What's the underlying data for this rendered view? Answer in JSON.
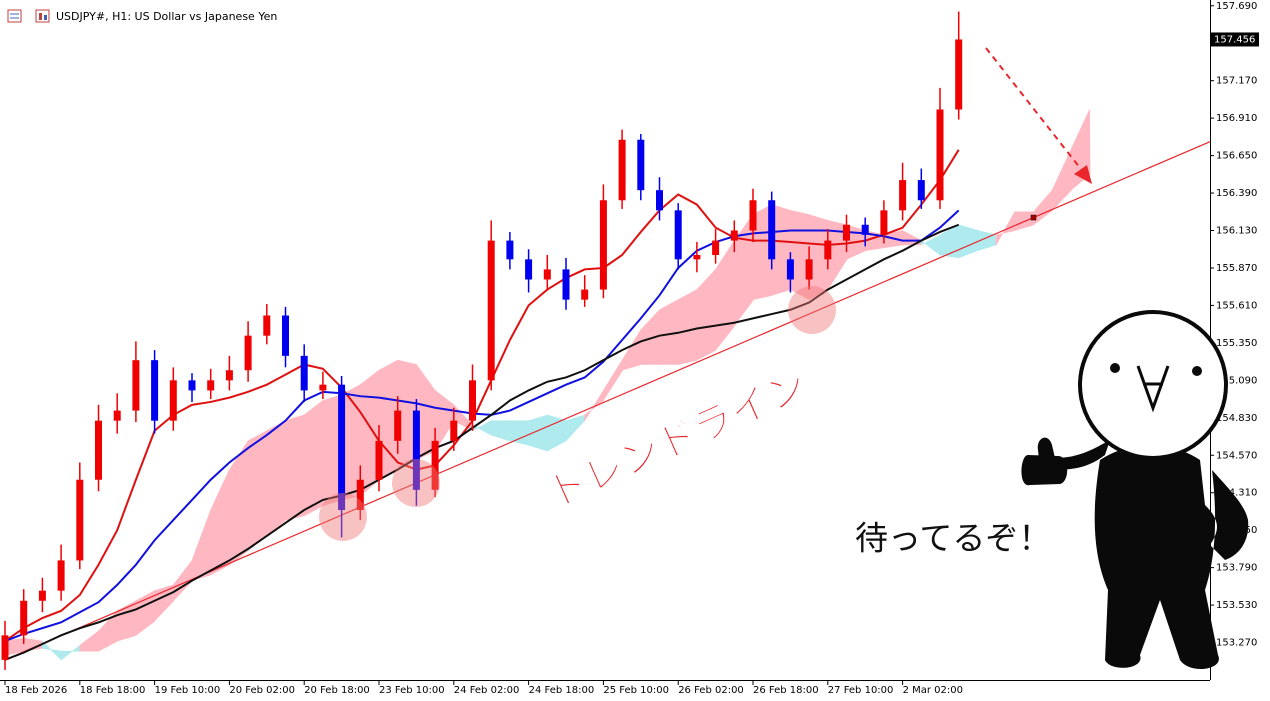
{
  "chart_data": {
    "type": "candlestick",
    "title": "USDJPY#, H1: US Dollar vs Japanese Yen",
    "categories": [
      "18 Feb 2026",
      null,
      null,
      null,
      "18 Feb 18:00",
      null,
      null,
      null,
      "19 Feb 10:00",
      null,
      null,
      null,
      "20 Feb 02:00",
      null,
      null,
      null,
      "20 Feb 18:00",
      null,
      null,
      null,
      "23 Feb 10:00",
      null,
      null,
      null,
      "24 Feb 02:00",
      null,
      null,
      null,
      "24 Feb 18:00",
      null,
      null,
      null,
      "25 Feb 10:00",
      null,
      null,
      null,
      "26 Feb 02:00",
      null,
      null,
      null,
      "26 Feb 18:00",
      null,
      null,
      null,
      "27 Feb 10:00",
      null,
      null,
      null,
      "2 Mar 02:00",
      null,
      null,
      null,
      null,
      null,
      null,
      null,
      null,
      null,
      null
    ],
    "open": [
      153.15,
      153.32,
      153.56,
      153.63,
      153.84,
      154.4,
      154.81,
      154.88,
      155.23,
      154.81,
      155.09,
      155.02,
      155.09,
      155.16,
      155.4,
      155.54,
      155.26,
      155.02,
      155.06,
      154.19,
      154.4,
      154.67,
      154.88,
      154.33,
      154.67,
      154.81,
      155.09,
      156.06,
      155.93,
      155.79,
      155.86,
      155.65,
      155.72,
      156.34,
      156.76,
      156.41,
      156.27,
      155.93,
      155.96,
      156.06,
      156.13,
      156.34,
      155.93,
      155.79,
      155.93,
      156.06,
      156.17,
      156.1,
      156.27,
      156.48,
      156.34,
      156.97,
      null,
      null,
      null,
      null,
      null,
      null,
      null
    ],
    "high": [
      153.42,
      153.64,
      153.72,
      153.95,
      154.52,
      154.92,
      155.0,
      155.36,
      155.3,
      155.18,
      155.14,
      155.17,
      155.26,
      155.5,
      155.62,
      155.6,
      155.34,
      155.15,
      155.12,
      154.5,
      154.78,
      154.98,
      154.96,
      154.76,
      154.9,
      155.2,
      156.2,
      156.12,
      156.0,
      155.96,
      155.94,
      155.82,
      156.45,
      156.83,
      156.8,
      156.5,
      156.32,
      156.05,
      156.14,
      156.2,
      156.42,
      156.4,
      155.98,
      156.02,
      156.14,
      156.24,
      156.22,
      156.34,
      156.6,
      156.56,
      157.12,
      157.65,
      null,
      null,
      null,
      null,
      null,
      null,
      null
    ],
    "low": [
      153.08,
      153.26,
      153.48,
      153.56,
      153.78,
      154.32,
      154.72,
      154.8,
      154.72,
      154.74,
      154.94,
      154.96,
      155.02,
      155.08,
      155.34,
      155.18,
      154.94,
      154.96,
      154.0,
      154.12,
      154.32,
      154.58,
      154.22,
      154.28,
      154.6,
      154.74,
      155.02,
      155.86,
      155.7,
      155.72,
      155.58,
      155.6,
      155.66,
      156.28,
      156.34,
      156.2,
      155.86,
      155.84,
      155.9,
      155.98,
      156.05,
      155.86,
      155.7,
      155.72,
      155.86,
      155.98,
      156.02,
      156.04,
      156.2,
      156.28,
      156.28,
      156.9,
      null,
      null,
      null,
      null,
      null,
      null,
      null
    ],
    "close": [
      153.32,
      153.56,
      153.63,
      153.84,
      154.4,
      154.81,
      154.88,
      155.23,
      154.81,
      155.09,
      155.02,
      155.09,
      155.16,
      155.4,
      155.54,
      155.26,
      155.02,
      155.06,
      154.19,
      154.4,
      154.67,
      154.88,
      154.33,
      154.67,
      154.81,
      155.09,
      156.06,
      155.93,
      155.79,
      155.86,
      155.65,
      155.72,
      156.34,
      156.76,
      156.41,
      156.27,
      155.93,
      155.96,
      156.06,
      156.13,
      156.34,
      155.93,
      155.79,
      155.93,
      156.06,
      156.17,
      156.1,
      156.27,
      156.48,
      156.34,
      156.97,
      157.456,
      null,
      null,
      null,
      null,
      null,
      null,
      null
    ],
    "up_color": "#f00000",
    "down_color": "#0000f0",
    "lines": [
      {
        "color": "#e01010",
        "values": [
          153.28,
          153.37,
          153.44,
          153.49,
          153.6,
          153.81,
          154.05,
          154.4,
          154.74,
          154.85,
          154.92,
          154.94,
          154.97,
          155.01,
          155.06,
          155.13,
          155.2,
          155.17,
          155.04,
          154.87,
          154.67,
          154.52,
          154.47,
          154.5,
          154.64,
          154.81,
          155.09,
          155.37,
          155.61,
          155.72,
          155.8,
          155.86,
          155.87,
          155.96,
          156.12,
          156.27,
          156.38,
          156.31,
          156.15,
          156.08,
          156.06,
          156.06,
          156.05,
          156.04,
          156.03,
          156.04,
          156.06,
          156.1,
          156.15,
          156.31,
          156.48,
          156.69,
          null,
          null,
          null,
          null,
          null,
          null,
          null
        ]
      },
      {
        "color": "#1010e0",
        "values": [
          153.28,
          153.33,
          153.37,
          153.41,
          153.48,
          153.55,
          153.67,
          153.81,
          153.98,
          154.12,
          154.26,
          154.4,
          154.52,
          154.62,
          154.71,
          154.81,
          154.95,
          155.01,
          155.0,
          154.98,
          154.97,
          154.95,
          154.93,
          154.9,
          154.88,
          154.86,
          154.85,
          154.88,
          154.94,
          155.0,
          155.06,
          155.11,
          155.22,
          155.37,
          155.52,
          155.68,
          155.87,
          155.99,
          156.05,
          156.09,
          156.11,
          156.12,
          156.13,
          156.13,
          156.13,
          156.12,
          156.11,
          156.09,
          156.06,
          156.06,
          156.15,
          156.27,
          null,
          null,
          null,
          null,
          null,
          null,
          null
        ]
      },
      {
        "color": "#101010",
        "values": [
          153.15,
          153.2,
          153.26,
          153.32,
          153.37,
          153.41,
          153.46,
          153.5,
          153.56,
          153.62,
          153.7,
          153.77,
          153.84,
          153.92,
          154.01,
          154.1,
          154.19,
          154.26,
          154.29,
          154.33,
          154.4,
          154.47,
          154.55,
          154.62,
          154.67,
          154.76,
          154.85,
          154.95,
          155.02,
          155.08,
          155.11,
          155.16,
          155.23,
          155.3,
          155.36,
          155.4,
          155.42,
          155.45,
          155.47,
          155.49,
          155.52,
          155.55,
          155.58,
          155.63,
          155.72,
          155.79,
          155.86,
          155.93,
          155.99,
          156.06,
          156.12,
          156.17,
          null,
          null,
          null,
          null,
          null,
          null,
          null
        ]
      }
    ],
    "cloud": {
      "up_color": "#ffb8c2",
      "down_color": "#aeeaee",
      "span_a": [
        153.28,
        153.3,
        153.28,
        153.15,
        153.25,
        153.35,
        153.49,
        153.56,
        153.63,
        153.67,
        153.84,
        154.19,
        154.47,
        154.67,
        154.74,
        154.81,
        154.85,
        154.95,
        154.99,
        155.06,
        155.16,
        155.23,
        155.2,
        155.02,
        154.92,
        154.78,
        154.71,
        154.67,
        154.64,
        154.6,
        154.67,
        154.81,
        155.02,
        155.23,
        155.44,
        155.58,
        155.65,
        155.72,
        155.86,
        156.06,
        156.24,
        156.31,
        156.27,
        156.24,
        156.2,
        156.17,
        156.13,
        156.1,
        156.13,
        156.06,
        155.96,
        155.94,
        155.99,
        156.03,
        156.26,
        156.26,
        156.41,
        156.69,
        156.97
      ],
      "span_b": [
        153.18,
        153.21,
        153.23,
        153.21,
        153.21,
        153.21,
        153.28,
        153.32,
        153.42,
        153.56,
        153.7,
        153.74,
        153.81,
        153.91,
        154.01,
        154.12,
        154.15,
        154.22,
        154.26,
        154.29,
        154.4,
        154.47,
        154.54,
        154.6,
        154.81,
        154.74,
        154.81,
        154.81,
        154.81,
        154.85,
        154.81,
        154.85,
        154.95,
        155.16,
        155.2,
        155.2,
        155.2,
        155.23,
        155.3,
        155.47,
        155.65,
        155.68,
        155.72,
        155.65,
        155.72,
        155.93,
        155.99,
        156.01,
        156.03,
        156.03,
        156.1,
        156.17,
        156.13,
        156.1,
        156.13,
        156.17,
        156.27,
        156.41,
        156.52
      ]
    },
    "trendline": {
      "label": "トレンドライン",
      "color": "#e8262b",
      "start": {
        "index": 0,
        "value": 153.15
      },
      "end": {
        "index": 55,
        "value": 156.22
      }
    },
    "last_price": 157.456,
    "annotations": [
      "待ってるぞ！"
    ],
    "ylim": [
      153.01,
      157.73
    ],
    "yticks": [
      {
        "value": 157.69,
        "label": "157.690"
      },
      {
        "value": 157.17,
        "label": "157.170"
      },
      {
        "value": 156.91,
        "label": "156.910"
      },
      {
        "value": 156.65,
        "label": "156.650"
      },
      {
        "value": 156.39,
        "label": "156.390"
      },
      {
        "value": 156.13,
        "label": "156.130"
      },
      {
        "value": 155.87,
        "label": "155.870"
      },
      {
        "value": 155.61,
        "label": "155.610"
      },
      {
        "value": 155.35,
        "label": "155.350"
      },
      {
        "value": 155.09,
        "label": "155.090"
      },
      {
        "value": 154.83,
        "label": "154.830"
      },
      {
        "value": 154.57,
        "label": "154.570"
      },
      {
        "value": 154.31,
        "label": "154.310"
      },
      {
        "value": 154.05,
        "label": "154.050"
      },
      {
        "value": 153.79,
        "label": "153.790"
      },
      {
        "value": 153.53,
        "label": "153.530"
      },
      {
        "value": 153.27,
        "label": "153.270"
      }
    ],
    "grid": false
  }
}
